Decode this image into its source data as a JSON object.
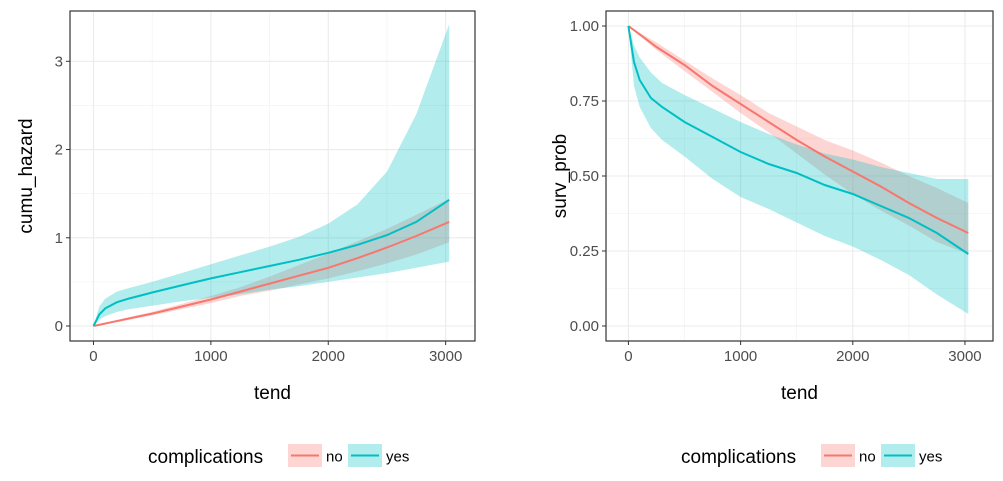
{
  "chart_data": [
    {
      "type": "line",
      "xlabel": "tend",
      "ylabel": "cumu_hazard",
      "xlim": [
        -200,
        3250
      ],
      "ylim": [
        -0.17,
        3.57
      ],
      "xticks": [
        0,
        1000,
        2000,
        3000
      ],
      "xtick_labels": [
        "0",
        "1000",
        "2000",
        "3000"
      ],
      "yticks": [
        0,
        1,
        2,
        3
      ],
      "ytick_labels": [
        "0",
        "1",
        "2",
        "3"
      ],
      "grid": true,
      "legend": {
        "title": "complications",
        "position": "bottom"
      },
      "series": [
        {
          "name": "no",
          "color": "#F8766D",
          "x": [
            0,
            250,
            500,
            750,
            1000,
            1250,
            1500,
            1750,
            2000,
            2250,
            2500,
            2750,
            3030
          ],
          "y": [
            0,
            0.07,
            0.14,
            0.22,
            0.3,
            0.39,
            0.48,
            0.57,
            0.66,
            0.77,
            0.89,
            1.02,
            1.18
          ],
          "lower": [
            0,
            0.055,
            0.12,
            0.19,
            0.26,
            0.34,
            0.4,
            0.47,
            0.54,
            0.62,
            0.71,
            0.81,
            0.95
          ],
          "upper": [
            0,
            0.085,
            0.16,
            0.25,
            0.34,
            0.44,
            0.56,
            0.69,
            0.82,
            0.96,
            1.1,
            1.26,
            1.44
          ]
        },
        {
          "name": "yes",
          "color": "#00BFC4",
          "x": [
            0,
            50,
            100,
            200,
            300,
            500,
            750,
            1000,
            1250,
            1500,
            1750,
            2000,
            2250,
            2500,
            2750,
            3030
          ],
          "y": [
            0,
            0.13,
            0.2,
            0.27,
            0.31,
            0.38,
            0.46,
            0.54,
            0.61,
            0.68,
            0.75,
            0.83,
            0.92,
            1.03,
            1.18,
            1.43
          ],
          "lower": [
            0,
            0.07,
            0.11,
            0.16,
            0.19,
            0.23,
            0.28,
            0.32,
            0.36,
            0.41,
            0.45,
            0.5,
            0.55,
            0.6,
            0.66,
            0.73
          ],
          "upper": [
            0,
            0.22,
            0.31,
            0.39,
            0.43,
            0.5,
            0.6,
            0.7,
            0.8,
            0.9,
            1.01,
            1.16,
            1.38,
            1.75,
            2.4,
            3.42
          ]
        }
      ]
    },
    {
      "type": "line",
      "xlabel": "tend",
      "ylabel": "surv_prob",
      "xlim": [
        -200,
        3250
      ],
      "ylim": [
        -0.05,
        1.05
      ],
      "xticks": [
        0,
        1000,
        2000,
        3000
      ],
      "xtick_labels": [
        "0",
        "1000",
        "2000",
        "3000"
      ],
      "yticks": [
        0,
        0.25,
        0.5,
        0.75,
        1.0
      ],
      "ytick_labels": [
        "0.00",
        "0.25",
        "0.50",
        "0.75",
        "1.00"
      ],
      "grid": true,
      "legend": {
        "title": "complications",
        "position": "bottom"
      },
      "series": [
        {
          "name": "no",
          "color": "#F8766D",
          "x": [
            0,
            250,
            500,
            750,
            1000,
            1250,
            1500,
            1750,
            2000,
            2250,
            2500,
            2750,
            3030
          ],
          "y": [
            1.0,
            0.93,
            0.87,
            0.8,
            0.74,
            0.68,
            0.62,
            0.565,
            0.515,
            0.465,
            0.41,
            0.36,
            0.31
          ],
          "lower": [
            1.0,
            0.92,
            0.85,
            0.78,
            0.71,
            0.645,
            0.575,
            0.505,
            0.44,
            0.385,
            0.335,
            0.28,
            0.24
          ],
          "upper": [
            1.0,
            0.945,
            0.885,
            0.825,
            0.77,
            0.71,
            0.665,
            0.62,
            0.585,
            0.545,
            0.5,
            0.46,
            0.41
          ]
        },
        {
          "name": "yes",
          "color": "#00BFC4",
          "x": [
            0,
            50,
            100,
            200,
            300,
            500,
            750,
            1000,
            1250,
            1500,
            1750,
            2000,
            2250,
            2500,
            2750,
            3030
          ],
          "y": [
            1.0,
            0.88,
            0.82,
            0.76,
            0.73,
            0.68,
            0.63,
            0.58,
            0.54,
            0.51,
            0.47,
            0.44,
            0.4,
            0.36,
            0.31,
            0.24
          ],
          "lower": [
            1.0,
            0.8,
            0.73,
            0.66,
            0.62,
            0.565,
            0.49,
            0.43,
            0.39,
            0.345,
            0.3,
            0.265,
            0.22,
            0.17,
            0.105,
            0.04
          ],
          "upper": [
            1.0,
            0.935,
            0.895,
            0.845,
            0.81,
            0.77,
            0.725,
            0.68,
            0.64,
            0.605,
            0.575,
            0.555,
            0.53,
            0.51,
            0.49,
            0.49
          ]
        }
      ]
    }
  ]
}
